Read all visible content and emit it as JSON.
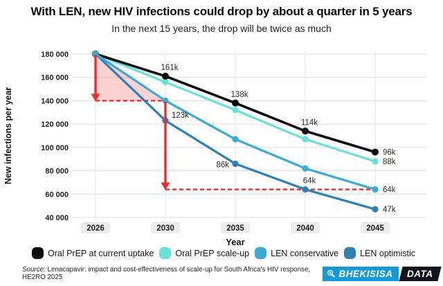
{
  "title": "With LEN, new HIV infections could drop by about a quarter in 5 years",
  "subtitle": "In the next 15 years, the drop will be twice as much",
  "chart_data": {
    "type": "line",
    "x": [
      2026,
      2030,
      2035,
      2040,
      2045
    ],
    "xlabel": "Year",
    "ylabel": "New  infections per year",
    "ylim": [
      40000,
      180000
    ],
    "grid": true,
    "yticks": [
      {
        "v": 180000,
        "label": "180 000"
      },
      {
        "v": 160000,
        "label": "160 000"
      },
      {
        "v": 140000,
        "label": "140 000"
      },
      {
        "v": 120000,
        "label": "120 000"
      },
      {
        "v": 100000,
        "label": "100 000"
      },
      {
        "v": 80000,
        "label": "80 000"
      },
      {
        "v": 60000,
        "label": "60 000"
      },
      {
        "v": 40000,
        "label": "40 000"
      }
    ],
    "series": [
      {
        "name": "Oral PrEP at current uptake",
        "color": "#0d0d0d",
        "values": [
          180000,
          161000,
          138000,
          114000,
          96000
        ]
      },
      {
        "name": "Oral PrEP scale-up",
        "color": "#69e1d8",
        "values": [
          180000,
          156000,
          132000,
          107000,
          88000
        ]
      },
      {
        "name": "LEN conservative",
        "color": "#3babd3",
        "values": [
          180000,
          140000,
          107000,
          82000,
          64000
        ]
      },
      {
        "name": "LEN optimistic",
        "color": "#2e80b5",
        "values": [
          180000,
          123000,
          86000,
          64000,
          47000
        ]
      }
    ],
    "point_labels": [
      {
        "series": 0,
        "index": 1,
        "text": "161k",
        "pos": "above"
      },
      {
        "series": 0,
        "index": 2,
        "text": "138k",
        "pos": "above"
      },
      {
        "series": 0,
        "index": 3,
        "text": "114k",
        "pos": "above"
      },
      {
        "series": 0,
        "index": 4,
        "text": "96k",
        "pos": "right"
      },
      {
        "series": 1,
        "index": 4,
        "text": "88k",
        "pos": "right"
      },
      {
        "series": 2,
        "index": 4,
        "text": "64k",
        "pos": "right"
      },
      {
        "series": 3,
        "index": 1,
        "text": "123k",
        "pos": "right-above"
      },
      {
        "series": 3,
        "index": 2,
        "text": "86k",
        "pos": "left"
      },
      {
        "series": 3,
        "index": 3,
        "text": "64k",
        "pos": "above"
      },
      {
        "series": 3,
        "index": 4,
        "text": "47k",
        "pos": "right"
      }
    ],
    "annotations": [
      {
        "type": "triangle",
        "points": [
          [
            2026,
            180000
          ],
          [
            2026,
            140000
          ],
          [
            2030,
            140000
          ]
        ]
      },
      {
        "type": "dash",
        "y": 140000,
        "x1": 2026,
        "x2": 2030
      },
      {
        "type": "dash",
        "y": 64000,
        "x1": 2030,
        "x2": 2045
      },
      {
        "type": "arrow",
        "x": 2026,
        "y1": 180000,
        "y2": 140000
      },
      {
        "type": "arrow",
        "x": 2030,
        "y1": 140000,
        "y2": 64000
      }
    ],
    "annotation_color": "#ee2b2d",
    "annotation_fill": "rgba(241,106,106,0.30)",
    "legend_position": "bottom"
  },
  "legend": [
    {
      "label": "Oral PrEP at current uptake",
      "color": "#0d0d0d"
    },
    {
      "label": "Oral PrEP scale-up",
      "color": "#69e1d8"
    },
    {
      "label": "LEN conservative",
      "color": "#3babd3"
    },
    {
      "label": "LEN optimistic",
      "color": "#2e80b5"
    }
  ],
  "footer": {
    "source_prefix": "Source:",
    "source_text": "Lenacapavir: impact and cost-effectiveness of scale-up for South Africa's HIV response, HE2RO 2025"
  },
  "logo": {
    "brand": "BHEKISISA",
    "suffix": "DATA",
    "blue": "#1899d4",
    "dark": "#14141d"
  }
}
